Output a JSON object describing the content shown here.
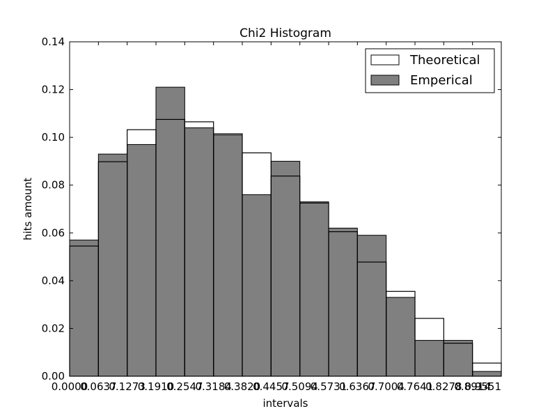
{
  "chart_data": {
    "type": "bar",
    "title": "Chi2 Histogram",
    "xlabel": "intervals",
    "ylabel": "hits amount",
    "ylim": [
      0,
      0.14
    ],
    "yticks": [
      "0.00",
      "0.02",
      "0.04",
      "0.06",
      "0.08",
      "0.10",
      "0.12",
      "0.14"
    ],
    "ytick_values": [
      0,
      0.02,
      0.04,
      0.06,
      0.08,
      0.1,
      0.12,
      0.14
    ],
    "xticks": [
      "0.0000",
      "0.0637",
      "0.1273",
      "0.1910",
      "0.2547",
      "0.3184",
      "0.3820",
      "0.4457",
      "0.5094",
      "0.5731",
      "0.6367",
      "0.7004",
      "0.7641",
      "0.8278",
      "0.8914",
      "0.9551"
    ],
    "xlim": [
      0.0,
      0.9551
    ],
    "bin_edges": [
      0.0,
      0.0637,
      0.1273,
      0.191,
      0.2547,
      0.3184,
      0.382,
      0.4457,
      0.5094,
      0.5731,
      0.6367,
      0.7004,
      0.7641,
      0.8278,
      0.8914,
      0.9551
    ],
    "grid": false,
    "legend_position": "top-right",
    "series": [
      {
        "name": "Theoretical",
        "style": "outline",
        "color": "#000000",
        "values": [
          0.0545,
          0.0898,
          0.1032,
          0.1075,
          0.1065,
          0.1015,
          0.0935,
          0.0838,
          0.0725,
          0.0605,
          0.0478,
          0.0355,
          0.0242,
          0.0138,
          0.0055
        ]
      },
      {
        "name": "Emperical",
        "style": "filled",
        "color": "#808080",
        "values": [
          0.057,
          0.093,
          0.097,
          0.121,
          0.104,
          0.101,
          0.076,
          0.09,
          0.073,
          0.062,
          0.059,
          0.033,
          0.015,
          0.015,
          0.002
        ]
      }
    ]
  }
}
